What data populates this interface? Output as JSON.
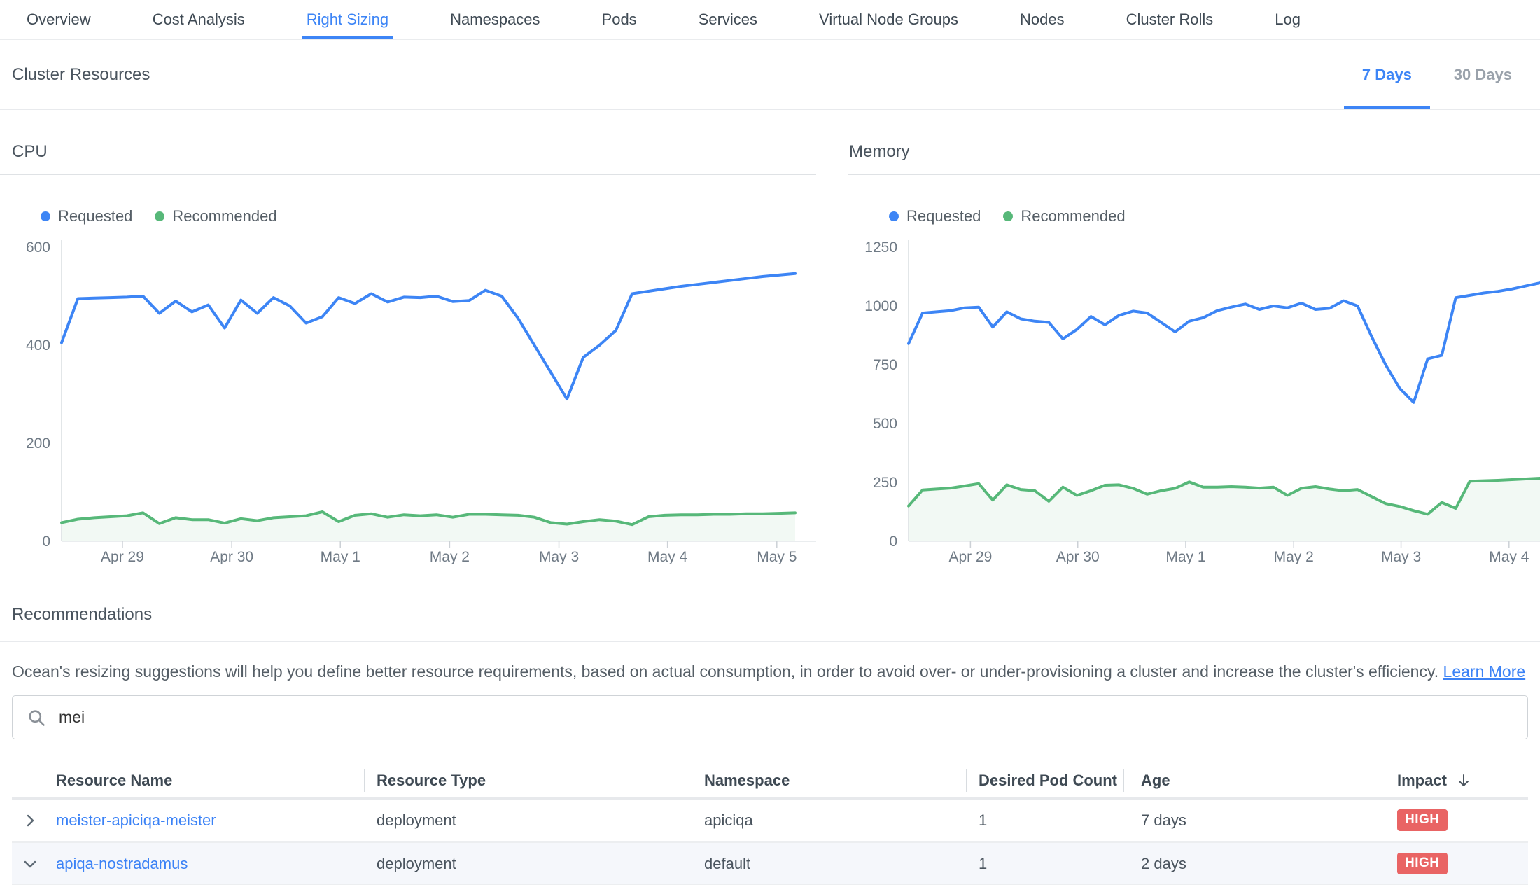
{
  "colors": {
    "accent_blue": "#3d85f6",
    "link_blue": "#3b82f6",
    "line_blue": "#3d85f5",
    "line_green": "#57b879",
    "green_fill": "rgba(87,184,121,0.08)",
    "badge_red": "#e96464"
  },
  "tabs": [
    {
      "label": "Overview",
      "active": false
    },
    {
      "label": "Cost Analysis",
      "active": false
    },
    {
      "label": "Right Sizing",
      "active": true
    },
    {
      "label": "Namespaces",
      "active": false
    },
    {
      "label": "Pods",
      "active": false
    },
    {
      "label": "Services",
      "active": false
    },
    {
      "label": "Virtual Node Groups",
      "active": false
    },
    {
      "label": "Nodes",
      "active": false
    },
    {
      "label": "Cluster Rolls",
      "active": false
    },
    {
      "label": "Log",
      "active": false
    }
  ],
  "cluster_resources": {
    "title": "Cluster Resources",
    "period_options": [
      {
        "label": "7 Days",
        "active": true
      },
      {
        "label": "30 Days",
        "active": false
      }
    ]
  },
  "chart_data": [
    {
      "type": "line",
      "title": "CPU",
      "legend_position": "top-left",
      "grid": false,
      "ylim": [
        0,
        600
      ],
      "yticks": [
        0,
        200,
        400,
        600
      ],
      "xticks": [
        {
          "label": "Apr 29",
          "pos": 0.083
        },
        {
          "label": "Apr 30",
          "pos": 0.232
        },
        {
          "label": "May 1",
          "pos": 0.38
        },
        {
          "label": "May 2",
          "pos": 0.529
        },
        {
          "label": "May 3",
          "pos": 0.678
        },
        {
          "label": "May 4",
          "pos": 0.826
        },
        {
          "label": "May 5",
          "pos": 0.975
        }
      ],
      "series": [
        {
          "name": "Requested",
          "color": "#3d85f5",
          "fill": false,
          "values": [
            405,
            495,
            496,
            497,
            498,
            500,
            465,
            490,
            468,
            482,
            435,
            492,
            465,
            497,
            480,
            445,
            458,
            497,
            485,
            505,
            488,
            498,
            497,
            500,
            489,
            491,
            512,
            500,
            455,
            400,
            345,
            290,
            375,
            400,
            430,
            505,
            510,
            515,
            520,
            524,
            528,
            532,
            536,
            540,
            543,
            546
          ]
        },
        {
          "name": "Recommended",
          "color": "#57b879",
          "fill": true,
          "values": [
            38,
            45,
            48,
            50,
            52,
            58,
            36,
            48,
            44,
            44,
            37,
            46,
            42,
            48,
            50,
            52,
            60,
            40,
            53,
            56,
            49,
            54,
            52,
            54,
            49,
            55,
            55,
            54,
            53,
            49,
            38,
            35,
            40,
            44,
            41,
            34,
            50,
            53,
            54,
            54,
            55,
            55,
            56,
            56,
            57,
            58
          ]
        }
      ]
    },
    {
      "type": "line",
      "title": "Memory",
      "legend_position": "top-left",
      "grid": false,
      "ylim": [
        0,
        1250
      ],
      "yticks": [
        0,
        250,
        500,
        750,
        1000,
        1250
      ],
      "xticks": [
        {
          "label": "Apr 29",
          "pos": 0.098
        },
        {
          "label": "Apr 30",
          "pos": 0.268
        },
        {
          "label": "May 1",
          "pos": 0.439
        },
        {
          "label": "May 2",
          "pos": 0.61
        },
        {
          "label": "May 3",
          "pos": 0.78
        },
        {
          "label": "May 4",
          "pos": 0.951
        }
      ],
      "series": [
        {
          "name": "Requested",
          "color": "#3d85f5",
          "fill": false,
          "values": [
            840,
            970,
            975,
            980,
            992,
            995,
            910,
            975,
            945,
            935,
            930,
            860,
            900,
            955,
            920,
            960,
            978,
            970,
            930,
            890,
            935,
            950,
            980,
            995,
            1008,
            985,
            1000,
            992,
            1012,
            985,
            990,
            1022,
            1000,
            870,
            750,
            650,
            590,
            775,
            790,
            1035,
            1045,
            1055,
            1062,
            1072,
            1085,
            1098
          ]
        },
        {
          "name": "Recommended",
          "color": "#57b879",
          "fill": true,
          "values": [
            150,
            218,
            222,
            226,
            235,
            245,
            175,
            240,
            220,
            215,
            170,
            230,
            195,
            215,
            238,
            240,
            225,
            200,
            215,
            225,
            252,
            230,
            230,
            232,
            230,
            226,
            230,
            195,
            225,
            232,
            222,
            215,
            220,
            190,
            160,
            148,
            130,
            115,
            165,
            140,
            255,
            257,
            259,
            262,
            265,
            268
          ]
        }
      ]
    }
  ],
  "recommendations": {
    "title": "Recommendations",
    "description": "Ocean's resizing suggestions will help you define better resource requirements, based on actual consumption, in order to avoid over- or under-provisioning a cluster and increase the cluster's efficiency.",
    "learn_more_label": "Learn More"
  },
  "search": {
    "value": "mei"
  },
  "table": {
    "columns": [
      "Resource Name",
      "Resource Type",
      "Namespace",
      "Desired Pod Count",
      "Age",
      "Impact"
    ],
    "sort_column": "Impact",
    "rows": [
      {
        "name": "meister-apiciqa-meister",
        "type": "deployment",
        "namespace": "apiciqa",
        "pods": "1",
        "age": "7 days",
        "impact": "HIGH",
        "expanded": false
      },
      {
        "name": "apiqa-nostradamus",
        "type": "deployment",
        "namespace": "default",
        "pods": "1",
        "age": "2 days",
        "impact": "HIGH",
        "expanded": true
      }
    ]
  }
}
